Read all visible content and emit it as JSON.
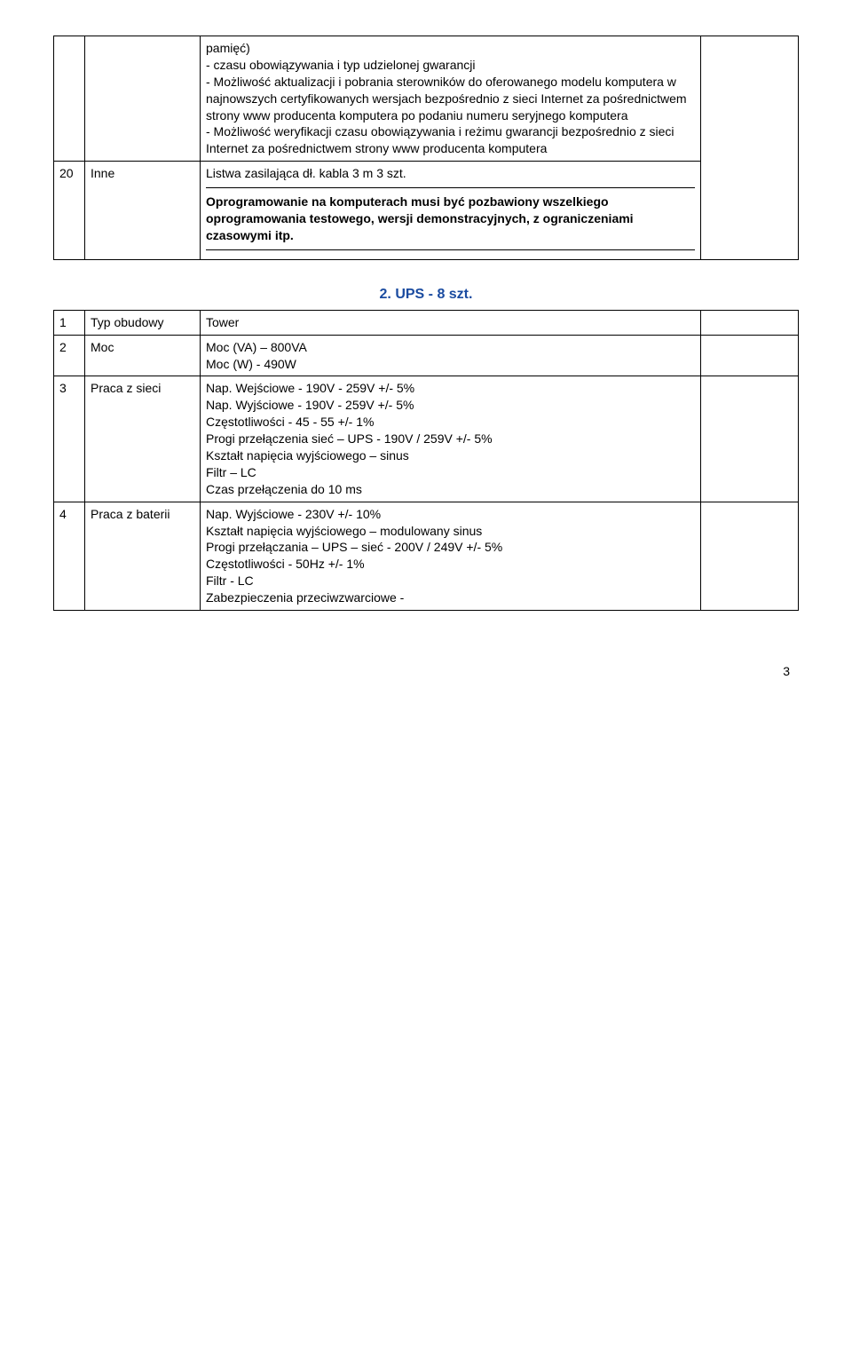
{
  "table1": {
    "row1": {
      "content": "pamięć)\n- czasu obowiązywania i typ udzielonej gwarancji\n- Możliwość aktualizacji i pobrania sterowników do oferowanego modelu komputera w najnowszych certyfikowanych wersjach bezpośrednio z sieci Internet za pośrednictwem strony www producenta komputera po podaniu numeru seryjnego komputera\n- Możliwość weryfikacji czasu obowiązywania i reżimu gwarancji bezpośrednio z sieci Internet za pośrednictwem strony www producenta komputera"
    },
    "row2": {
      "num": "20",
      "label": "Inne",
      "content_top": "Listwa zasilająca dł. kabla 3 m 3 szt.",
      "content_bold": "Oprogramowanie na komputerach musi być pozbawiony wszelkiego oprogramowania testowego, wersji demonstracyjnych, z ograniczeniami czasowymi itp."
    }
  },
  "section_title": "2. UPS - 8 szt.",
  "table2": {
    "r1": {
      "num": "1",
      "label": "Typ obudowy",
      "content": "Tower"
    },
    "r2": {
      "num": "2",
      "label": "Moc",
      "content": "Moc (VA) – 800VA\nMoc (W) - 490W"
    },
    "r3": {
      "num": "3",
      "label": "Praca z sieci",
      "content": "Nap. Wejściowe - 190V - 259V +/- 5%\nNap. Wyjściowe - 190V - 259V +/- 5%\nCzęstotliwości - 45 - 55 +/- 1%\nProgi przełączenia sieć – UPS - 190V / 259V +/- 5%\nKształt napięcia wyjściowego – sinus\nFiltr – LC\nCzas przełączenia do 10 ms"
    },
    "r4": {
      "num": "4",
      "label": "Praca z baterii",
      "content": "Nap. Wyjściowe - 230V +/- 10%\nKształt napięcia wyjściowego – modulowany sinus\nProgi przełączania – UPS – sieć - 200V / 249V +/- 5%\nCzęstotliwości - 50Hz +/- 1%\nFiltr - LC\nZabezpieczenia przeciwzwarciowe -"
    }
  },
  "page_number": "3"
}
